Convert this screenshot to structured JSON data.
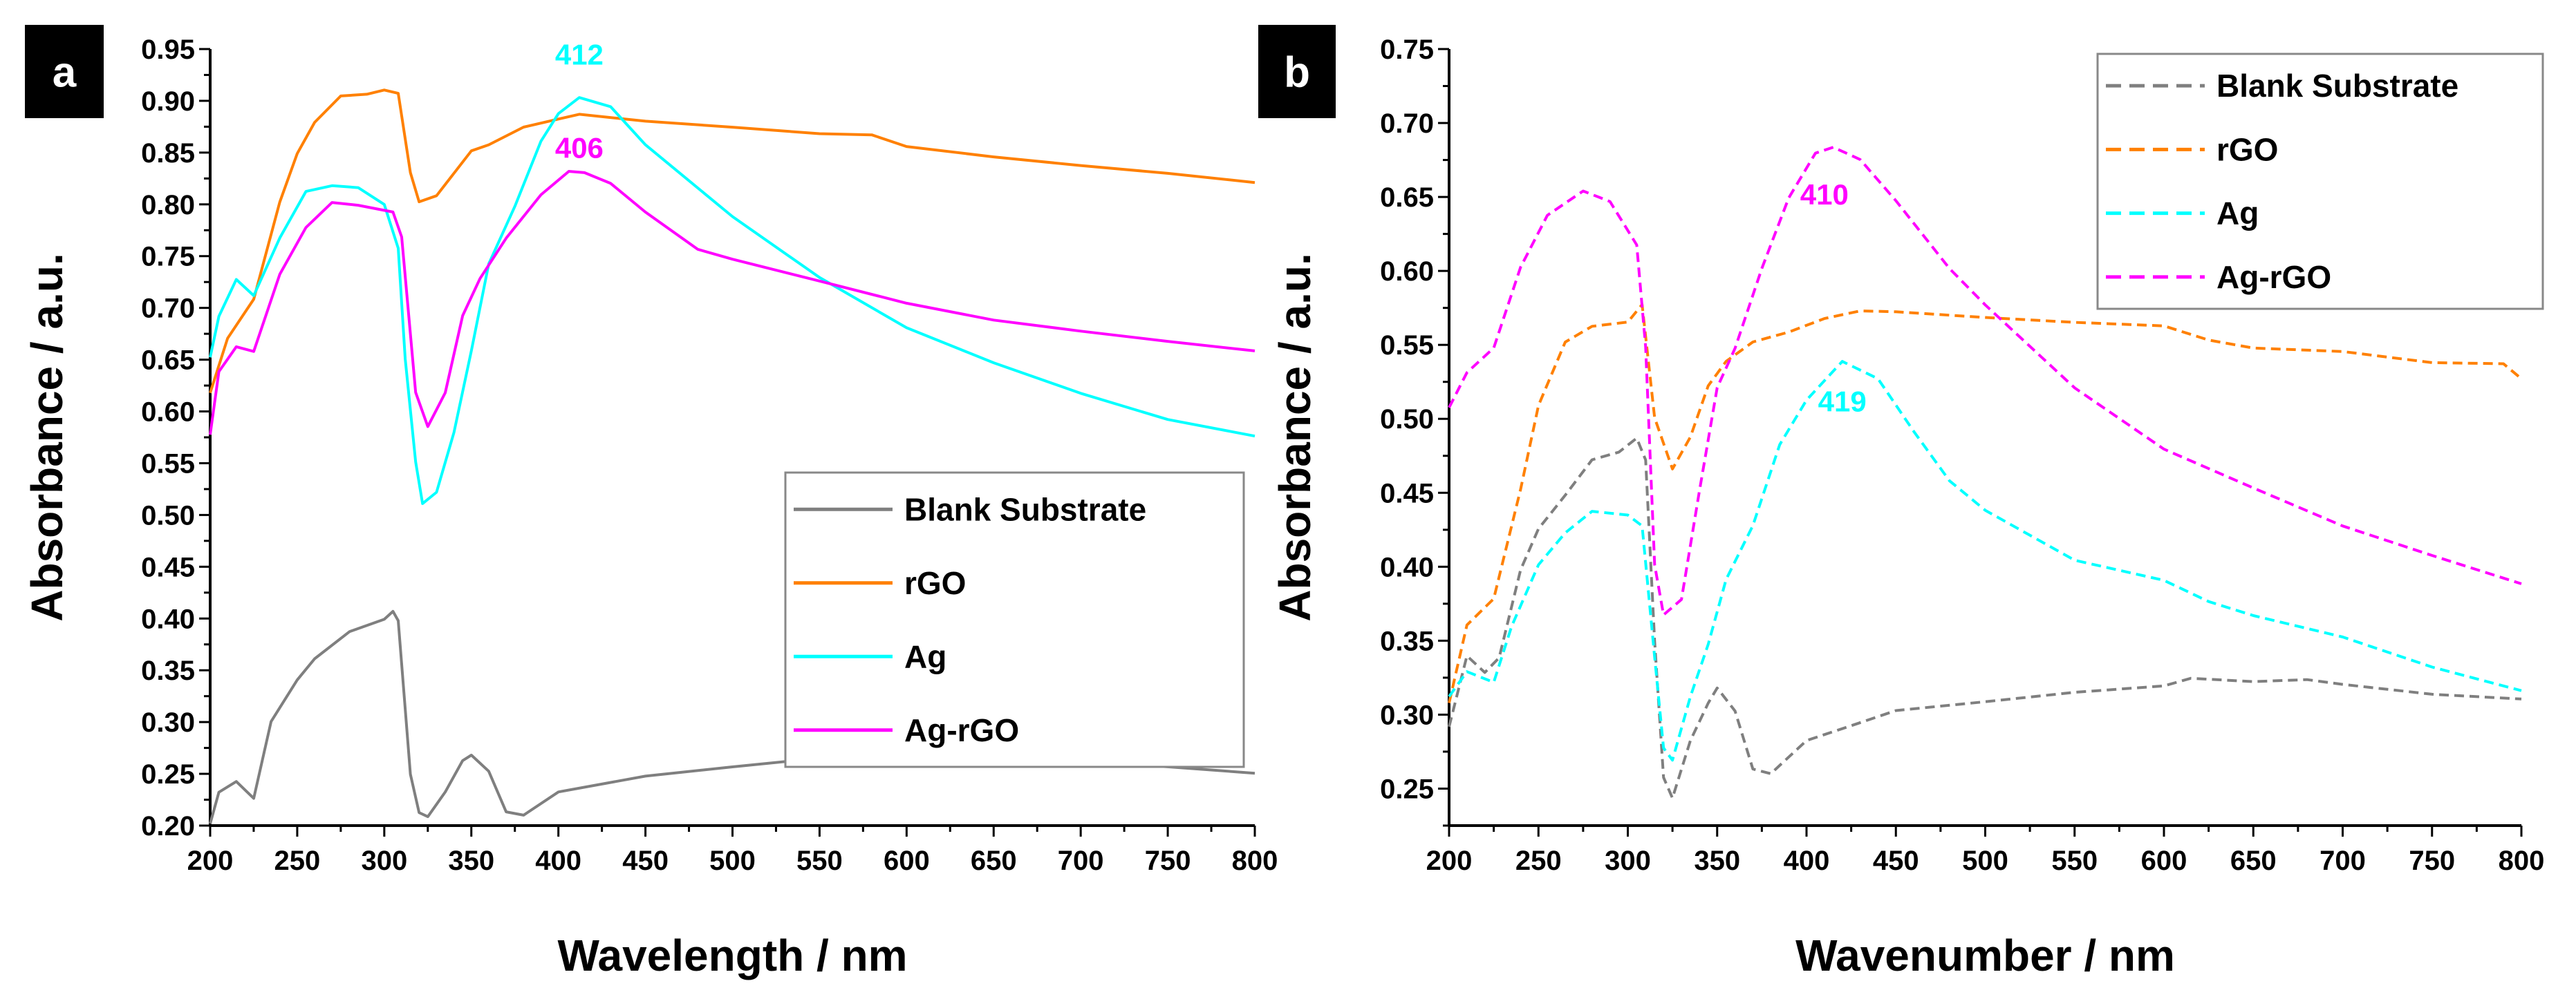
{
  "chart_data": [
    {
      "type": "line",
      "panel_label": "a",
      "xlabel": "Wavelength / nm",
      "ylabel": "Absorbance / a.u.",
      "xlim": [
        200,
        800
      ],
      "ylim": [
        0.2,
        0.95
      ],
      "x_ticks": [
        "200",
        "250",
        "300",
        "350",
        "400",
        "450",
        "500",
        "550",
        "600",
        "650",
        "700",
        "750",
        "800"
      ],
      "y_ticks": [
        "0.20",
        "0.25",
        "0.30",
        "0.35",
        "0.40",
        "0.45",
        "0.50",
        "0.55",
        "0.60",
        "0.65",
        "0.70",
        "0.75",
        "0.80",
        "0.85",
        "0.90",
        "0.95"
      ],
      "line_style": "solid",
      "legend_position": "center-right",
      "grid": false,
      "series": [
        {
          "name": "Blank Substrate",
          "color": "#7f7f7f",
          "x": [
            200,
            205,
            215,
            225,
            235,
            250,
            260,
            280,
            300,
            305,
            308,
            315,
            320,
            325,
            335,
            345,
            350,
            360,
            370,
            380,
            400,
            450,
            500,
            550,
            600,
            650,
            700,
            750,
            800
          ],
          "y": [
            0.2,
            0.23,
            0.245,
            0.225,
            0.3,
            0.34,
            0.36,
            0.385,
            0.4,
            0.405,
            0.4,
            0.25,
            0.215,
            0.21,
            0.23,
            0.265,
            0.27,
            0.25,
            0.215,
            0.21,
            0.235,
            0.25,
            0.258,
            0.265,
            0.265,
            0.263,
            0.26,
            0.255,
            0.25
          ]
        },
        {
          "name": "rGO",
          "color": "#ff8000",
          "x": [
            200,
            210,
            225,
            240,
            250,
            260,
            275,
            290,
            300,
            308,
            315,
            320,
            330,
            340,
            350,
            360,
            380,
            400,
            412,
            450,
            500,
            550,
            580,
            600,
            650,
            700,
            750,
            800
          ],
          "y": [
            0.62,
            0.67,
            0.71,
            0.8,
            0.85,
            0.88,
            0.905,
            0.905,
            0.91,
            0.905,
            0.83,
            0.8,
            0.81,
            0.83,
            0.85,
            0.86,
            0.875,
            0.88,
            0.885,
            0.878,
            0.873,
            0.868,
            0.865,
            0.857,
            0.848,
            0.84,
            0.832,
            0.822
          ]
        },
        {
          "name": "Ag",
          "color": "#00ffff",
          "x": [
            200,
            205,
            215,
            225,
            240,
            255,
            270,
            285,
            300,
            308,
            312,
            318,
            322,
            330,
            340,
            350,
            360,
            375,
            390,
            400,
            412,
            430,
            450,
            500,
            550,
            600,
            650,
            700,
            750,
            800
          ],
          "y": [
            0.65,
            0.69,
            0.73,
            0.71,
            0.77,
            0.81,
            0.82,
            0.815,
            0.8,
            0.76,
            0.65,
            0.55,
            0.51,
            0.52,
            0.58,
            0.66,
            0.74,
            0.8,
            0.86,
            0.89,
            0.905,
            0.895,
            0.86,
            0.79,
            0.73,
            0.68,
            0.645,
            0.615,
            0.59,
            0.575
          ]
        },
        {
          "name": "Ag-rGO",
          "color": "#ff00ff",
          "x": [
            200,
            205,
            215,
            225,
            240,
            255,
            270,
            285,
            305,
            310,
            318,
            325,
            335,
            345,
            355,
            370,
            390,
            406,
            415,
            430,
            450,
            480,
            500,
            550,
            600,
            650,
            700,
            750,
            800
          ],
          "y": [
            0.58,
            0.64,
            0.66,
            0.66,
            0.73,
            0.78,
            0.8,
            0.8,
            0.795,
            0.77,
            0.62,
            0.585,
            0.62,
            0.69,
            0.73,
            0.765,
            0.81,
            0.83,
            0.832,
            0.82,
            0.79,
            0.755,
            0.745,
            0.725,
            0.705,
            0.69,
            0.68,
            0.67,
            0.66
          ]
        }
      ],
      "annotations": [
        {
          "text": "412",
          "x": 412,
          "y": 0.935,
          "color": "#00ffff"
        },
        {
          "text": "406",
          "x": 412,
          "y": 0.845,
          "color": "#ff00ff"
        }
      ]
    },
    {
      "type": "line",
      "panel_label": "b",
      "xlabel": "Wavenumber / nm",
      "ylabel": "Absorbance / a.u.",
      "xlim": [
        200,
        800
      ],
      "ylim": [
        0.225,
        0.75
      ],
      "x_ticks": [
        "200",
        "250",
        "300",
        "350",
        "400",
        "450",
        "500",
        "550",
        "600",
        "650",
        "700",
        "750",
        "800"
      ],
      "y_ticks": [
        "0.25",
        "0.30",
        "0.35",
        "0.40",
        "0.45",
        "0.50",
        "0.55",
        "0.60",
        "0.65",
        "0.70",
        "0.75"
      ],
      "line_style": "dashed",
      "legend_position": "top-right",
      "grid": false,
      "series": [
        {
          "name": "Blank Substrate",
          "color": "#7f7f7f",
          "x": [
            200,
            210,
            220,
            228,
            240,
            250,
            265,
            280,
            295,
            305,
            310,
            315,
            320,
            325,
            335,
            345,
            350,
            360,
            370,
            380,
            400,
            425,
            450,
            500,
            550,
            600,
            615,
            650,
            680,
            700,
            750,
            800
          ],
          "y": [
            0.29,
            0.34,
            0.33,
            0.34,
            0.4,
            0.425,
            0.45,
            0.47,
            0.48,
            0.485,
            0.47,
            0.35,
            0.26,
            0.245,
            0.28,
            0.31,
            0.32,
            0.3,
            0.265,
            0.26,
            0.285,
            0.295,
            0.305,
            0.31,
            0.315,
            0.318,
            0.325,
            0.32,
            0.323,
            0.318,
            0.312,
            0.31
          ]
        },
        {
          "name": "rGO",
          "color": "#ff8000",
          "x": [
            200,
            210,
            225,
            240,
            250,
            265,
            280,
            300,
            308,
            315,
            325,
            335,
            345,
            355,
            370,
            390,
            410,
            430,
            450,
            500,
            550,
            600,
            625,
            650,
            700,
            750,
            790,
            800
          ],
          "y": [
            0.31,
            0.36,
            0.38,
            0.45,
            0.51,
            0.55,
            0.565,
            0.565,
            0.575,
            0.5,
            0.465,
            0.49,
            0.52,
            0.54,
            0.55,
            0.56,
            0.57,
            0.572,
            0.57,
            0.567,
            0.565,
            0.564,
            0.555,
            0.55,
            0.548,
            0.54,
            0.535,
            0.528
          ]
        },
        {
          "name": "Ag",
          "color": "#00ffff",
          "x": [
            200,
            210,
            225,
            235,
            250,
            265,
            280,
            300,
            308,
            315,
            320,
            325,
            335,
            345,
            355,
            370,
            385,
            400,
            420,
            440,
            460,
            480,
            500,
            550,
            600,
            625,
            650,
            700,
            750,
            800
          ],
          "y": [
            0.31,
            0.33,
            0.32,
            0.36,
            0.4,
            0.425,
            0.435,
            0.435,
            0.43,
            0.34,
            0.28,
            0.27,
            0.31,
            0.35,
            0.39,
            0.43,
            0.48,
            0.515,
            0.54,
            0.525,
            0.49,
            0.46,
            0.44,
            0.405,
            0.39,
            0.375,
            0.365,
            0.35,
            0.33,
            0.315
          ]
        },
        {
          "name": "Ag-rGO",
          "color": "#ff00ff",
          "x": [
            200,
            210,
            225,
            240,
            255,
            275,
            290,
            305,
            310,
            315,
            320,
            330,
            340,
            350,
            360,
            375,
            390,
            405,
            415,
            430,
            450,
            480,
            500,
            550,
            600,
            650,
            700,
            750,
            800
          ],
          "y": [
            0.51,
            0.53,
            0.55,
            0.6,
            0.64,
            0.655,
            0.645,
            0.62,
            0.55,
            0.4,
            0.365,
            0.38,
            0.45,
            0.52,
            0.55,
            0.6,
            0.65,
            0.68,
            0.685,
            0.675,
            0.645,
            0.6,
            0.575,
            0.52,
            0.48,
            0.455,
            0.43,
            0.41,
            0.39
          ]
        }
      ],
      "annotations": [
        {
          "text": "410",
          "x": 410,
          "y": 0.645,
          "color": "#ff00ff"
        },
        {
          "text": "419",
          "x": 420,
          "y": 0.505,
          "color": "#00ffff"
        }
      ]
    }
  ]
}
